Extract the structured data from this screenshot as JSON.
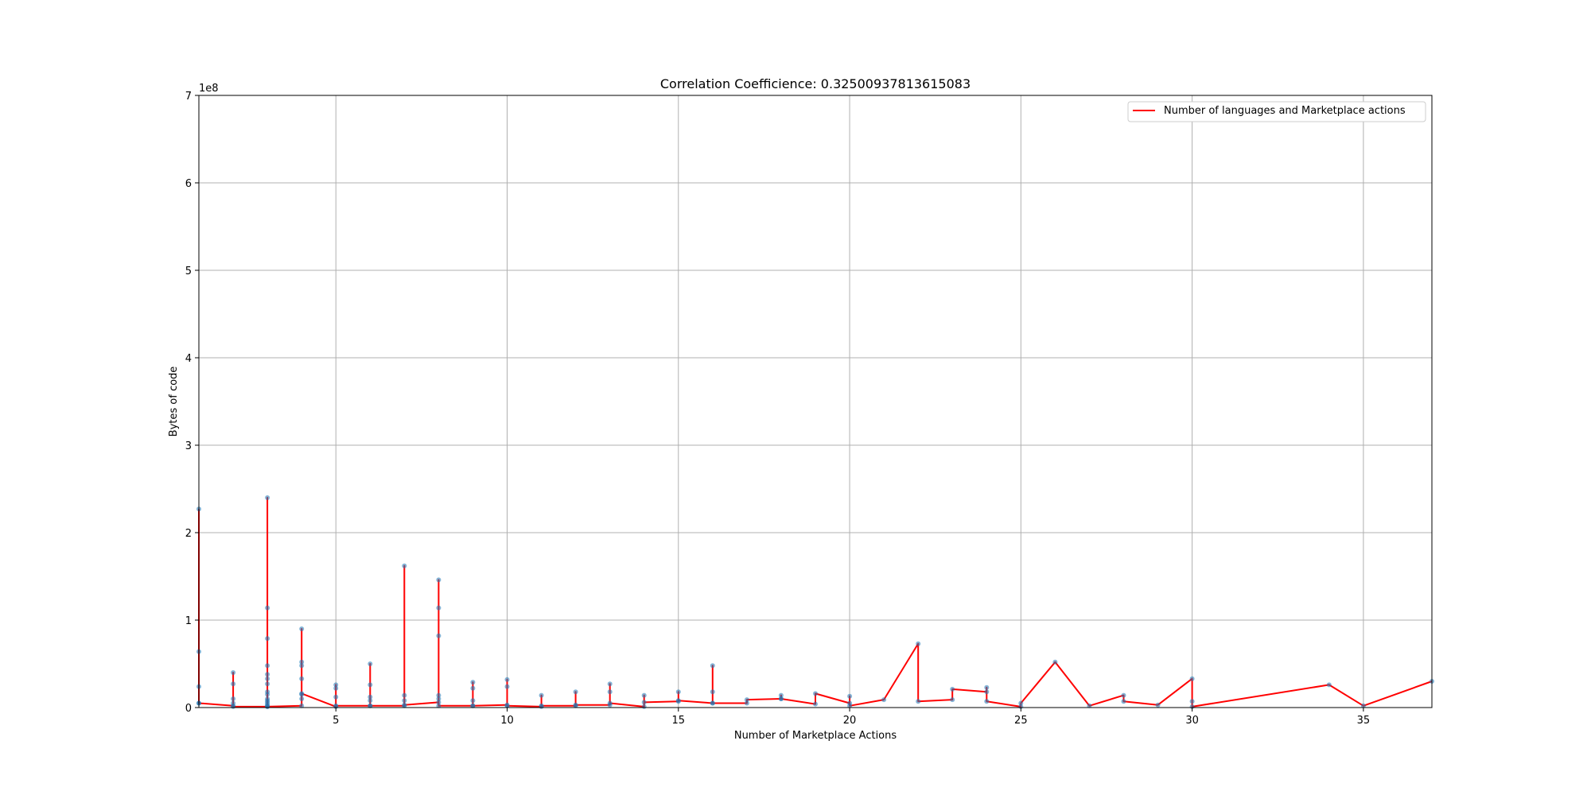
{
  "chart_data": {
    "type": "line",
    "title": "Correlation Coefficience: 0.32500937813615083",
    "xlabel": "Number of Marketplace Actions",
    "ylabel": "Bytes of code",
    "offset_text": "1e8",
    "xlim": [
      1,
      37
    ],
    "ylim": [
      0,
      7
    ],
    "x_ticks": [
      5,
      10,
      15,
      20,
      25,
      30,
      35
    ],
    "y_ticks": [
      0,
      1,
      2,
      3,
      4,
      5,
      6,
      7
    ],
    "grid": true,
    "legend_position": "top-right",
    "line_color": "#ff0000",
    "marker_color": "#1f77b4",
    "series": [
      {
        "name": "Number of languages and Marketplace actions",
        "x": [
          1,
          1,
          1,
          1,
          1,
          2,
          2,
          2,
          2,
          2,
          2,
          3,
          3,
          3,
          3,
          3,
          3,
          3,
          3,
          3,
          3,
          3,
          3,
          3,
          3,
          3,
          3,
          4,
          4,
          4,
          4,
          4,
          4,
          4,
          4,
          5,
          5,
          5,
          5,
          5,
          6,
          6,
          6,
          6,
          6,
          6,
          7,
          7,
          7,
          7,
          7,
          8,
          8,
          8,
          8,
          8,
          8,
          8,
          9,
          9,
          9,
          9,
          9,
          10,
          10,
          10,
          10,
          11,
          11,
          11,
          12,
          12,
          12,
          13,
          13,
          13,
          13,
          14,
          14,
          14,
          15,
          15,
          15,
          16,
          16,
          16,
          16,
          17,
          17,
          18,
          18,
          18,
          19,
          19,
          20,
          20,
          20,
          21,
          22,
          22,
          23,
          23,
          24,
          24,
          24,
          25,
          25,
          26,
          27,
          28,
          28,
          29,
          30,
          30,
          30,
          34,
          35,
          37
        ],
        "y": [
          2.27,
          0.64,
          0.24,
          0.05,
          0.05,
          0.02,
          0.4,
          0.27,
          0.1,
          0.05,
          0.01,
          0.01,
          2.4,
          1.14,
          0.79,
          0.48,
          0.38,
          0.33,
          0.27,
          0.18,
          0.15,
          0.1,
          0.08,
          0.06,
          0.04,
          0.02,
          0.01,
          0.02,
          0.9,
          0.52,
          0.48,
          0.33,
          0.15,
          0.1,
          0.16,
          0.01,
          0.26,
          0.22,
          0.12,
          0.02,
          0.02,
          0.5,
          0.26,
          0.12,
          0.08,
          0.02,
          0.02,
          1.62,
          0.14,
          0.08,
          0.03,
          0.06,
          1.46,
          1.14,
          0.82,
          0.14,
          0.1,
          0.02,
          0.02,
          0.29,
          0.22,
          0.08,
          0.02,
          0.03,
          0.32,
          0.24,
          0.02,
          0.01,
          0.14,
          0.02,
          0.02,
          0.18,
          0.03,
          0.03,
          0.27,
          0.18,
          0.05,
          0.01,
          0.14,
          0.06,
          0.07,
          0.18,
          0.08,
          0.05,
          0.48,
          0.18,
          0.05,
          0.05,
          0.09,
          0.1,
          0.14,
          0.1,
          0.04,
          0.16,
          0.05,
          0.13,
          0.02,
          0.09,
          0.73,
          0.07,
          0.09,
          0.21,
          0.18,
          0.23,
          0.07,
          0.01,
          0.05,
          0.52,
          0.02,
          0.14,
          0.07,
          0.03,
          0.33,
          0.07,
          0.01,
          0.26,
          0.02,
          0.3
        ]
      }
    ]
  }
}
